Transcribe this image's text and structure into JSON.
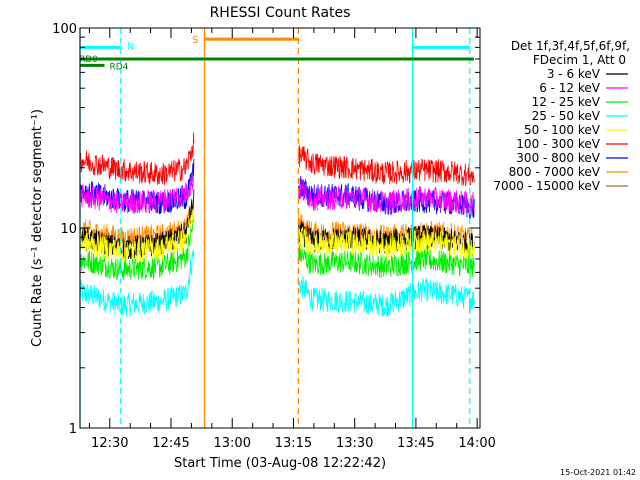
{
  "chart_data": {
    "type": "line",
    "title": "RHESSI Count Rates",
    "xlabel": "Start Time (03-Aug-08 12:22:42)",
    "ylabel": "Count Rate (s⁻¹ detector segment⁻¹)",
    "yscale": "log",
    "ylim": [
      1,
      100
    ],
    "xlim_minutes": [
      0,
      98
    ],
    "x_ticks": [
      "12:30",
      "12:45",
      "13:00",
      "13:15",
      "13:30",
      "13:45",
      "14:00"
    ],
    "y_ticks": [
      "1",
      "10",
      "100"
    ],
    "legend_header": [
      "Det 1f,3f,4f,5f,6f,9f,",
      "FDecim 1, Att 0"
    ],
    "legend_position": "right",
    "footer_date": "15-Oct-2021 01:42",
    "data_gaps": [
      [
        28,
        53.5
      ]
    ],
    "series": [
      {
        "name": "3 - 6 keV",
        "color": "#000000",
        "values": [
          [
            0,
            9.0
          ],
          [
            10,
            7.9
          ],
          [
            20,
            8.3
          ],
          [
            26,
            9.4
          ],
          [
            28,
            14
          ],
          [
            54,
            9.5
          ],
          [
            57,
            8.6
          ],
          [
            66,
            8.9
          ],
          [
            75,
            8.5
          ],
          [
            84,
            9.1
          ],
          [
            92,
            8.6
          ],
          [
            98,
            8.2
          ]
        ]
      },
      {
        "name": "6 - 12 keV",
        "color": "#ff00ff",
        "values": [
          [
            0,
            14.5
          ],
          [
            10,
            13.3
          ],
          [
            20,
            13.7
          ],
          [
            26,
            15
          ],
          [
            28,
            18
          ],
          [
            54,
            15.5
          ],
          [
            57,
            14
          ],
          [
            66,
            14.2
          ],
          [
            75,
            13.4
          ],
          [
            84,
            14.2
          ],
          [
            92,
            13.6
          ],
          [
            98,
            13.0
          ]
        ]
      },
      {
        "name": "12 - 25 keV",
        "color": "#00ee00",
        "values": [
          [
            0,
            7.0
          ],
          [
            10,
            6.2
          ],
          [
            20,
            6.4
          ],
          [
            26,
            7.2
          ],
          [
            28,
            11
          ],
          [
            54,
            7.4
          ],
          [
            57,
            6.6
          ],
          [
            66,
            6.8
          ],
          [
            75,
            6.4
          ],
          [
            84,
            7.0
          ],
          [
            92,
            6.6
          ],
          [
            98,
            6.3
          ]
        ]
      },
      {
        "name": "25 - 50 keV",
        "color": "#00ffff",
        "values": [
          [
            0,
            4.8
          ],
          [
            10,
            4.1
          ],
          [
            20,
            4.3
          ],
          [
            26,
            4.7
          ],
          [
            28,
            8
          ],
          [
            54,
            5.2
          ],
          [
            57,
            4.4
          ],
          [
            66,
            4.3
          ],
          [
            75,
            4.1
          ],
          [
            84,
            4.9
          ],
          [
            92,
            4.6
          ],
          [
            98,
            4.3
          ]
        ]
      },
      {
        "name": "50 - 100 keV",
        "color": "#ffff00",
        "values": [
          [
            0,
            8.5
          ],
          [
            10,
            7.6
          ],
          [
            20,
            7.9
          ],
          [
            26,
            8.8
          ],
          [
            28,
            12
          ],
          [
            54,
            9.0
          ],
          [
            57,
            8.2
          ],
          [
            66,
            8.4
          ],
          [
            75,
            8.0
          ],
          [
            84,
            8.6
          ],
          [
            92,
            8.2
          ],
          [
            98,
            7.8
          ]
        ]
      },
      {
        "name": "100 - 300 keV",
        "color": "#ff0000",
        "values": [
          [
            0,
            22
          ],
          [
            10,
            19.5
          ],
          [
            20,
            18.5
          ],
          [
            26,
            20
          ],
          [
            28,
            27
          ],
          [
            54,
            23
          ],
          [
            57,
            21
          ],
          [
            66,
            20
          ],
          [
            75,
            18.8
          ],
          [
            84,
            19.5
          ],
          [
            92,
            19
          ],
          [
            98,
            17.8
          ]
        ]
      },
      {
        "name": "300 - 800 keV",
        "color": "#0000ff",
        "values": [
          [
            0,
            15.5
          ],
          [
            10,
            13.8
          ],
          [
            20,
            13.4
          ],
          [
            26,
            14
          ],
          [
            28,
            20
          ],
          [
            54,
            16
          ],
          [
            57,
            14.6
          ],
          [
            66,
            14.6
          ],
          [
            75,
            13.2
          ],
          [
            84,
            13.6
          ],
          [
            92,
            13.2
          ],
          [
            98,
            12.3
          ]
        ]
      },
      {
        "name": "800 - 7000 keV",
        "color": "#ff8c00",
        "values": [
          [
            0,
            9.8
          ],
          [
            10,
            8.9
          ],
          [
            20,
            9.1
          ],
          [
            26,
            10
          ],
          [
            28,
            13
          ],
          [
            54,
            10.4
          ],
          [
            57,
            9.4
          ],
          [
            66,
            9.5
          ],
          [
            75,
            9.0
          ],
          [
            84,
            9.6
          ],
          [
            92,
            9.2
          ],
          [
            98,
            8.6
          ]
        ]
      },
      {
        "name": "7000 - 15000 keV",
        "color": "#a07030",
        "values": []
      }
    ],
    "annotations": {
      "vertical_lines": [
        {
          "x": 0,
          "color": "#00ffff",
          "style": "solid"
        },
        {
          "x": 10,
          "color": "#00ffff",
          "style": "dashed"
        },
        {
          "x": 30.5,
          "color": "#ff8c00",
          "style": "solid"
        },
        {
          "x": 53.5,
          "color": "#ff8c00",
          "style": "dashed"
        },
        {
          "x": 81.5,
          "color": "#00ffff",
          "style": "solid"
        },
        {
          "x": 95.5,
          "color": "#00ffff",
          "style": "dashed"
        }
      ],
      "horizontal_segments": [
        {
          "label": "N",
          "color": "#00ffff",
          "y": 80,
          "x1": 0,
          "x2": 10
        },
        {
          "label": "",
          "color": "#00ffff",
          "y": 80,
          "x1": 81.5,
          "x2": 95.5
        },
        {
          "label": "S",
          "color": "#ff8c00",
          "y": 88,
          "x1": 30.5,
          "x2": 53.5
        },
        {
          "label": "RD0",
          "color": "#008000",
          "y": 70,
          "x1": 0,
          "x2": 96.5
        },
        {
          "label": "RD4",
          "color": "#008000",
          "y": 65,
          "x1": 0,
          "x2": 6
        }
      ]
    }
  }
}
